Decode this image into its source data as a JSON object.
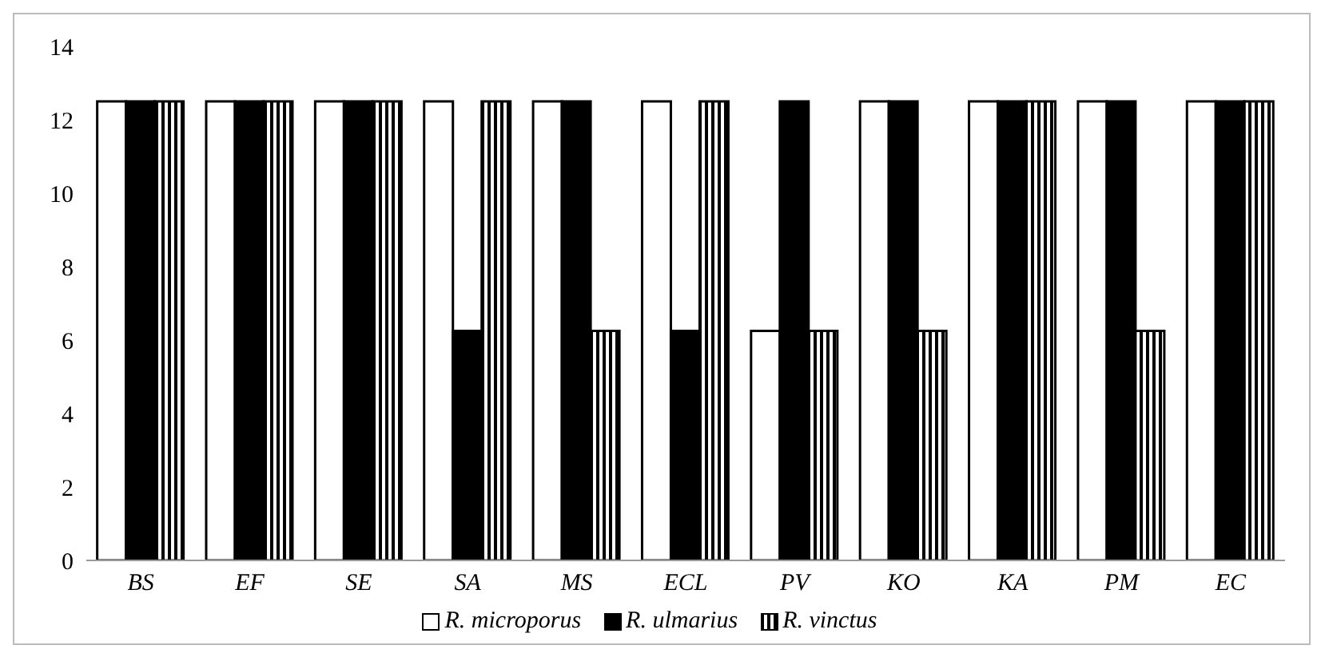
{
  "chart_data": {
    "type": "bar",
    "categories": [
      "BS",
      "EF",
      "SE",
      "SA",
      "MS",
      "ECL",
      "PV",
      "KO",
      "KA",
      "PM",
      "EC"
    ],
    "series": [
      {
        "name": "R. microporus",
        "color": "#ffffff",
        "values": [
          12.5,
          12.5,
          12.5,
          12.5,
          12.5,
          12.5,
          6.25,
          12.5,
          12.5,
          12.5,
          12.5
        ]
      },
      {
        "name": "R. ulmarius",
        "color": "#000000",
        "values": [
          12.5,
          12.5,
          12.5,
          6.25,
          12.5,
          6.25,
          12.5,
          12.5,
          12.5,
          12.5,
          12.5
        ]
      },
      {
        "name": "R. vinctus",
        "color": "#000000",
        "values": [
          12.5,
          12.5,
          12.5,
          12.5,
          6.25,
          12.5,
          6.25,
          6.25,
          12.5,
          6.25,
          12.5
        ]
      }
    ],
    "ylim": [
      0,
      14
    ],
    "yticks": [
      0,
      2,
      4,
      6,
      8,
      10,
      12,
      14
    ],
    "grid": false,
    "legend": "bottom"
  }
}
